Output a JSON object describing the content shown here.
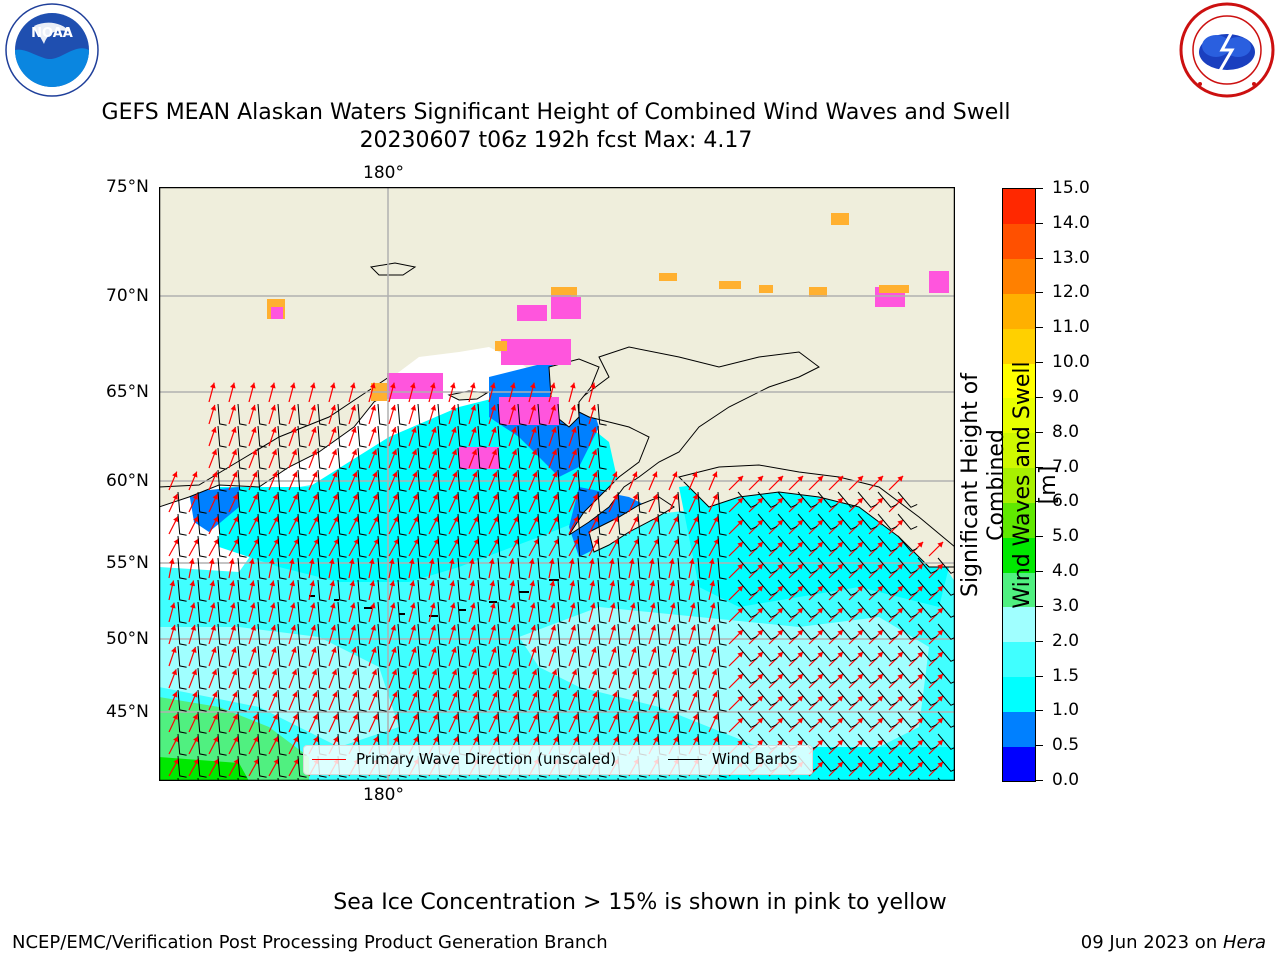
{
  "header": {
    "title_line1": "GEFS MEAN Alaskan Waters Significant Height of Combined Wind Waves and Swell",
    "title_line2": "20230607 t06z 192h fcst   Max: 4.17"
  },
  "logos": {
    "left": {
      "icon": "noaa-logo",
      "text": "NOAA",
      "ring_text": "NATIONAL OCEANIC AND ATMOSPHERIC ADMINISTRATION · U.S. DEPARTMENT OF COMMERCE"
    },
    "right": {
      "icon": "nws-logo",
      "ring_text": "NATIONAL WEATHER SERVICE"
    }
  },
  "map": {
    "lat_labels": [
      "75°N",
      "70°N",
      "65°N",
      "60°N",
      "55°N",
      "50°N",
      "45°N"
    ],
    "lon_label_top": "180°",
    "lon_label_bottom": "180°",
    "colors": {
      "land": "#efeedc",
      "coast": "#000000",
      "grid": "#b0b0b0",
      "sea_1_0": "#0080ff",
      "sea_1_5": "#00ffff",
      "sea_2_0": "#40ffff",
      "sea_3_0": "#a0ffff",
      "sea_4_0": "#50f080",
      "sea_5_0": "#00e800",
      "ice_pink": "#ff55dd",
      "ice_orange": "#ffb030",
      "wave_arrow": "#ff0000",
      "wind_barb": "#000000"
    }
  },
  "legend": {
    "items": [
      {
        "label": "Primary Wave Direction (unscaled)",
        "color": "#ff0000"
      },
      {
        "label": "Wind Barbs",
        "color": "#000000"
      }
    ]
  },
  "colorbar": {
    "title_line1": "Significant Height of Combined",
    "title_line2": "Wind Waves and Swell [m]",
    "ticks": [
      "0.0",
      "0.5",
      "1.0",
      "1.5",
      "2.0",
      "3.0",
      "4.0",
      "5.0",
      "6.0",
      "7.0",
      "8.0",
      "9.0",
      "10.0",
      "11.0",
      "12.0",
      "13.0",
      "14.0",
      "15.0"
    ],
    "colors": [
      "#0000ff",
      "#0080ff",
      "#00ffff",
      "#40ffff",
      "#a0ffff",
      "#50f080",
      "#00e800",
      "#60e800",
      "#a8f000",
      "#d0f800",
      "#e8ff00",
      "#ffff00",
      "#ffd000",
      "#ffb000",
      "#ff8000",
      "#ff5000",
      "#ff2800"
    ]
  },
  "notes": {
    "sea_ice": "Sea Ice Concentration > 15% is shown in pink to yellow"
  },
  "footer": {
    "left": "NCEP/EMC/Verification Post Processing Product Generation Branch",
    "date": "09 Jun 2023 on ",
    "machine": "Hera"
  }
}
